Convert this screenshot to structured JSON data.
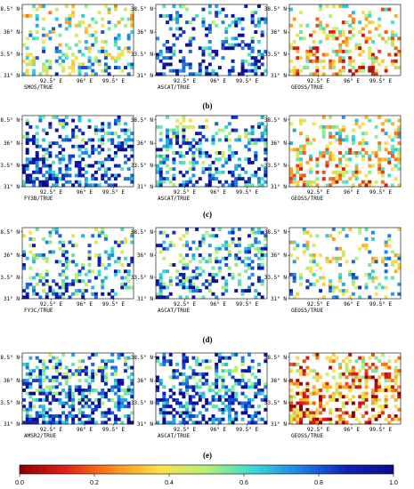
{
  "axis_labels": {
    "lat": [
      "38.5° N",
      "36° N",
      "33.5° N",
      "31° N"
    ],
    "lon": [
      "92.5° E",
      "96° E",
      "99.5° E"
    ]
  },
  "rows": [
    {
      "label": "(b)",
      "captions": [
        "SMOS/TRUE",
        "ASCAT/TRUE",
        "GEOSS/TRUE"
      ]
    },
    {
      "label": "(c)",
      "captions": [
        "FY3B/TRUE",
        "ASCAT/TRUE",
        "GEOSS/TRUE"
      ]
    },
    {
      "label": "(d)",
      "captions": [
        "FY3C/TRUE",
        "ASCAT/TRUE",
        "GEOSS/TRUE"
      ]
    },
    {
      "label": "(e)",
      "captions": [
        "AMSR2/TRUE",
        "ASCAT/TRUE",
        "GEOSS/TRUE"
      ]
    }
  ],
  "panels": [
    {
      "coverage": 0.3,
      "bias": 0.55,
      "seed": 11
    },
    {
      "coverage": 0.3,
      "bias": 0.8,
      "seed": 12
    },
    {
      "coverage": 0.3,
      "bias": 0.35,
      "seed": 13
    },
    {
      "coverage": 0.42,
      "bias": 0.8,
      "seed": 21
    },
    {
      "coverage": 0.38,
      "bias": 0.72,
      "seed": 22
    },
    {
      "coverage": 0.36,
      "bias": 0.4,
      "seed": 23
    },
    {
      "coverage": 0.33,
      "bias": 0.68,
      "seed": 31
    },
    {
      "coverage": 0.33,
      "bias": 0.72,
      "seed": 32
    },
    {
      "coverage": 0.3,
      "bias": 0.55,
      "seed": 33
    },
    {
      "coverage": 0.5,
      "bias": 0.75,
      "seed": 41
    },
    {
      "coverage": 0.5,
      "bias": 0.78,
      "seed": 42
    },
    {
      "coverage": 0.5,
      "bias": 0.25,
      "seed": 43
    }
  ],
  "colorbar": {
    "ticks": [
      "0.0",
      "0.2",
      "0.4",
      "0.6",
      "0.8",
      "1.0"
    ],
    "tick_values": [
      0.0,
      0.2,
      0.4,
      0.6,
      0.8,
      1.0
    ],
    "colors": [
      "#8b0000",
      "#e0201b",
      "#ff8c1a",
      "#ffe14a",
      "#b5f075",
      "#38dbd6",
      "#1e7fe6",
      "#1020b8",
      "#0c0c8c"
    ]
  }
}
